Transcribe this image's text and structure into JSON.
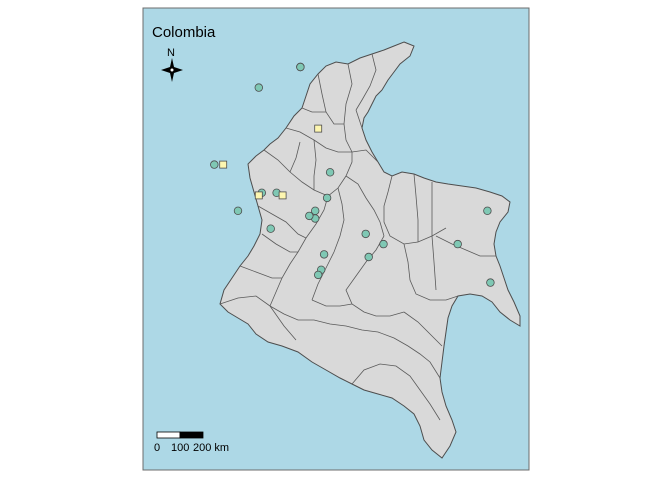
{
  "map": {
    "title": "Colombia",
    "north_label": "N",
    "scale_bar": {
      "labels": [
        "0",
        "100",
        "200 km"
      ]
    },
    "colors": {
      "water": "#add8e6",
      "land": "#d9d9d9",
      "border": "#4d4d4d",
      "circle_marker": "#7fc8b4",
      "square_marker": "#fdf6b0"
    },
    "markers": {
      "circles": [
        {
          "lon": -75.6,
          "lat": 10.4
        },
        {
          "lon": -74.2,
          "lat": 11.2
        },
        {
          "lon": -74.2,
          "lat": 11.2
        },
        {
          "lon": -75.5,
          "lat": 6.3
        },
        {
          "lon": -75.0,
          "lat": 6.3
        },
        {
          "lon": -76.3,
          "lat": 5.6
        },
        {
          "lon": -75.2,
          "lat": 4.9
        },
        {
          "lon": -73.2,
          "lat": 7.1
        },
        {
          "lon": -73.3,
          "lat": 6.1
        },
        {
          "lon": -73.7,
          "lat": 5.6
        },
        {
          "lon": -73.7,
          "lat": 5.3
        },
        {
          "lon": -73.9,
          "lat": 5.4
        },
        {
          "lon": -72.0,
          "lat": 4.7
        },
        {
          "lon": -71.4,
          "lat": 4.3
        },
        {
          "lon": -71.9,
          "lat": 3.8
        },
        {
          "lon": -73.4,
          "lat": 3.9
        },
        {
          "lon": -73.5,
          "lat": 3.3
        },
        {
          "lon": -73.6,
          "lat": 3.1
        },
        {
          "lon": -68.9,
          "lat": 4.3
        },
        {
          "lon": -67.9,
          "lat": 5.6
        },
        {
          "lon": -67.8,
          "lat": 2.8
        },
        {
          "lon": -77.1,
          "lat": 7.4
        }
      ],
      "squares": [
        {
          "lon": -73.6,
          "lat": 8.8
        },
        {
          "lon": -76.8,
          "lat": 7.4
        },
        {
          "lon": -75.6,
          "lat": 6.2
        },
        {
          "lon": -74.8,
          "lat": 6.2
        }
      ]
    }
  }
}
